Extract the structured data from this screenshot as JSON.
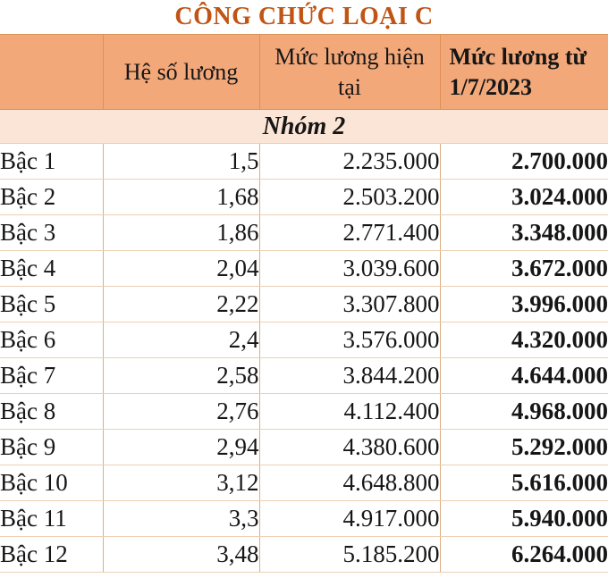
{
  "title": "CÔNG CHỨC LOẠI C",
  "colors": {
    "title_text": "#c05414",
    "header_background": "#f3a87a",
    "group_row_background": "#fbe5d6",
    "grid_line": "#dcae83"
  },
  "table": {
    "columns": [
      "",
      "Hệ số lương",
      "Mức lương hiện tại",
      "Mức lương từ 1/7/2023"
    ],
    "group": "Nhóm 2",
    "rows": [
      {
        "label": "Bậc 1",
        "coefficient": "1,5",
        "current_salary": "2.235.000",
        "new_salary": "2.700.000"
      },
      {
        "label": "Bậc 2",
        "coefficient": "1,68",
        "current_salary": "2.503.200",
        "new_salary": "3.024.000"
      },
      {
        "label": "Bậc 3",
        "coefficient": "1,86",
        "current_salary": "2.771.400",
        "new_salary": "3.348.000"
      },
      {
        "label": "Bậc 4",
        "coefficient": "2,04",
        "current_salary": "3.039.600",
        "new_salary": "3.672.000"
      },
      {
        "label": "Bậc 5",
        "coefficient": "2,22",
        "current_salary": "3.307.800",
        "new_salary": "3.996.000"
      },
      {
        "label": "Bậc 6",
        "coefficient": "2,4",
        "current_salary": "3.576.000",
        "new_salary": "4.320.000"
      },
      {
        "label": "Bậc 7",
        "coefficient": "2,58",
        "current_salary": "3.844.200",
        "new_salary": "4.644.000"
      },
      {
        "label": "Bậc 8",
        "coefficient": "2,76",
        "current_salary": "4.112.400",
        "new_salary": "4.968.000"
      },
      {
        "label": "Bậc 9",
        "coefficient": "2,94",
        "current_salary": "4.380.600",
        "new_salary": "5.292.000"
      },
      {
        "label": "Bậc 10",
        "coefficient": "3,12",
        "current_salary": "4.648.800",
        "new_salary": "5.616.000"
      },
      {
        "label": "Bậc 11",
        "coefficient": "3,3",
        "current_salary": "4.917.000",
        "new_salary": "5.940.000"
      },
      {
        "label": "Bậc 12",
        "coefficient": "3,48",
        "current_salary": "5.185.200",
        "new_salary": "6.264.000"
      }
    ]
  }
}
